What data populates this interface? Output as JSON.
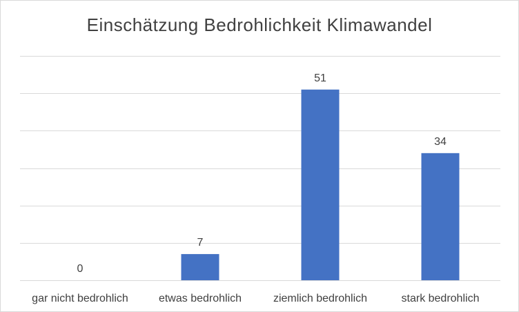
{
  "chart_data": {
    "type": "bar",
    "title": "Einschätzung  Bedrohlichkeit  Klimawandel",
    "categories": [
      "gar nicht bedrohlich",
      "etwas bedrohlich",
      "ziemlich bedrohlich",
      "stark bedrohlich"
    ],
    "values": [
      0,
      7,
      51,
      34
    ],
    "data_labels": [
      "0",
      "7",
      "51",
      "34"
    ],
    "ylim": [
      0,
      60
    ],
    "y_gridlines": [
      0,
      10,
      20,
      30,
      40,
      50,
      60
    ],
    "grid": true,
    "legend": "none",
    "colors": {
      "bar": "#4472c4",
      "grid": "#d9d9d9",
      "text": "#404040"
    }
  }
}
